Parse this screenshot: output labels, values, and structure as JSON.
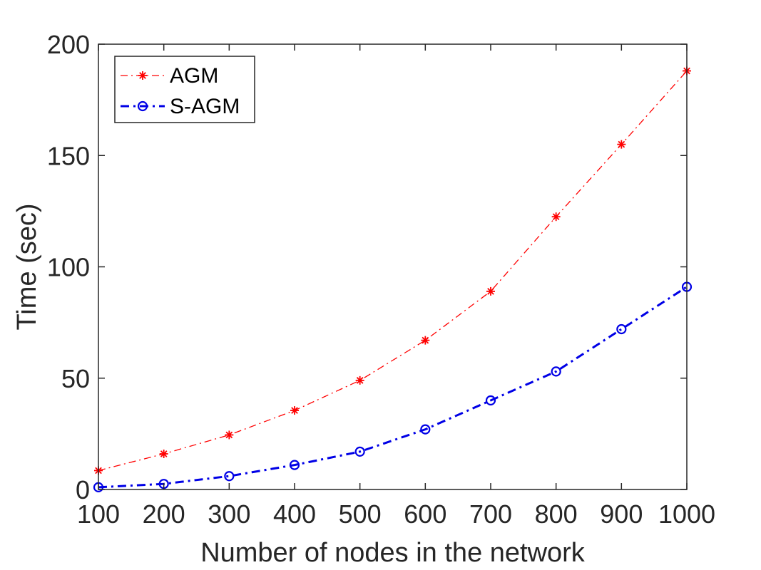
{
  "chart_data": {
    "type": "line",
    "title": "",
    "xlabel": "Number of nodes in the network",
    "ylabel": "Time (sec)",
    "xlim": [
      100,
      1000
    ],
    "ylim": [
      0,
      200
    ],
    "x": [
      100,
      200,
      300,
      400,
      500,
      600,
      700,
      800,
      900,
      1000
    ],
    "xticks": [
      "100",
      "200",
      "300",
      "400",
      "500",
      "600",
      "700",
      "800",
      "900",
      "1000"
    ],
    "yticks": [
      "0",
      "50",
      "100",
      "150",
      "200"
    ],
    "grid": false,
    "legend_position": "top-left",
    "series": [
      {
        "name": "AGM",
        "color": "#ff0000",
        "marker": "asterisk",
        "line_style": "dash-dot",
        "values": [
          8.5,
          16,
          24.5,
          35.5,
          49,
          67,
          89,
          122.5,
          155,
          188
        ]
      },
      {
        "name": "S-AGM",
        "color": "#0000e6",
        "marker": "circle",
        "line_style": "dash-dot",
        "values": [
          1,
          2.5,
          6,
          11,
          17,
          27,
          40,
          53,
          72,
          91
        ]
      }
    ]
  }
}
